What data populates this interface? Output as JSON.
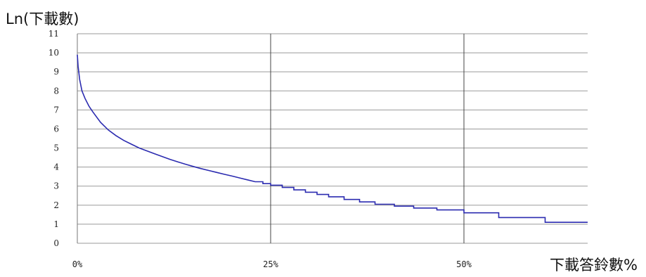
{
  "chart_data": {
    "type": "line",
    "title": "",
    "ylabel": "Ln(下載數)",
    "xlabel": "下載答鈴數%",
    "xlim": [
      0,
      66
    ],
    "ylim": [
      0,
      11
    ],
    "x_ticks": [
      0,
      25,
      50
    ],
    "x_tick_labels": [
      "0%",
      "25%",
      "50%"
    ],
    "y_ticks": [
      0,
      1,
      2,
      3,
      4,
      5,
      6,
      7,
      8,
      9,
      10,
      11
    ],
    "y_tick_labels": [
      "0",
      "1",
      "2",
      "3",
      "4",
      "5",
      "6",
      "7",
      "8",
      "9",
      "10",
      "11"
    ],
    "grid": "horizontal lines at every y tick; vertical lines at 25% and 50%",
    "line_color": "#2b2bb0",
    "series": [
      {
        "step": true,
        "x": [
          0,
          0.1,
          0.3,
          0.6,
          1,
          1.5,
          2,
          3,
          4,
          5,
          6,
          7,
          8,
          9,
          10,
          11,
          12,
          13,
          14,
          15,
          16,
          17,
          18,
          19,
          20,
          21,
          22,
          23,
          24,
          25,
          26.5,
          28,
          29.5,
          31,
          32.5,
          34.5,
          36.5,
          38.5,
          41,
          43.5,
          46.5,
          50,
          54.5,
          60.5,
          66
        ],
        "y": [
          9.9,
          9.3,
          8.6,
          8.0,
          7.6,
          7.2,
          6.9,
          6.35,
          5.95,
          5.65,
          5.4,
          5.2,
          5.0,
          4.85,
          4.7,
          4.55,
          4.4,
          4.27,
          4.15,
          4.03,
          3.92,
          3.82,
          3.72,
          3.62,
          3.53,
          3.43,
          3.33,
          3.23,
          3.13,
          3.05,
          2.93,
          2.8,
          2.68,
          2.56,
          2.44,
          2.3,
          2.17,
          2.05,
          1.95,
          1.85,
          1.75,
          1.6,
          1.35,
          1.1,
          1.1
        ]
      }
    ]
  }
}
